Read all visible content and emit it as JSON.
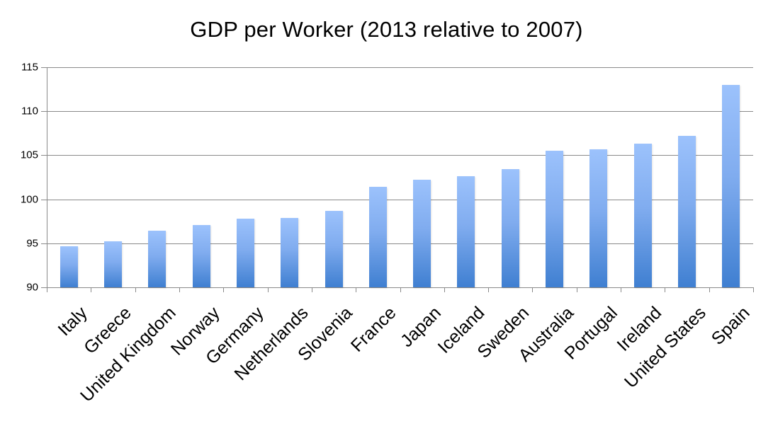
{
  "chart_data": {
    "type": "bar",
    "title": "GDP per Worker (2013 relative to 2007)",
    "xlabel": "",
    "ylabel": "",
    "ylim": [
      90,
      115
    ],
    "yticks": [
      90,
      95,
      100,
      105,
      110,
      115
    ],
    "grid": true,
    "legend": null,
    "categories": [
      "Italy",
      "Greece",
      "United Kingdom",
      "Norway",
      "Germany",
      "Netherlands",
      "Slovenia",
      "France",
      "Japan",
      "Iceland",
      "Sweden",
      "Australia",
      "Portugal",
      "Ireland",
      "United States",
      "Spain"
    ],
    "values": [
      94.7,
      95.2,
      96.4,
      97.1,
      97.8,
      97.9,
      98.7,
      101.4,
      102.2,
      102.6,
      103.4,
      105.5,
      105.7,
      106.3,
      107.2,
      113.0
    ],
    "bar_color_top": "#9cc2fc",
    "bar_color_bottom": "#3f7fd1"
  }
}
